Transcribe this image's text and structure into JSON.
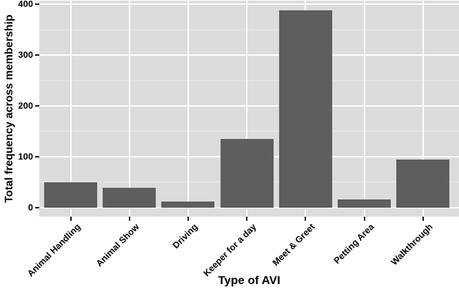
{
  "chart_data": {
    "type": "bar",
    "title": "",
    "categories": [
      "Animal Handling",
      "Animal Show",
      "Driving",
      "Keeper for a day",
      "Meet & Greet",
      "Petting Area",
      "Walkthrough"
    ],
    "values": [
      50,
      39,
      12,
      135,
      388,
      16,
      95
    ],
    "xlabel": "Type of AVI",
    "ylabel": "Total frequency across membership",
    "ylim": [
      0,
      400
    ],
    "yticks": [
      0,
      100,
      200,
      300,
      400
    ],
    "minor_gridline_interval": 50,
    "grid": "horizontal major + minor; vertical major at category centers",
    "legend": "none",
    "style": "ggplot2 grey theme",
    "colors": {
      "bar_fill": "#5E5E5E",
      "panel_background": "#DCDCDC",
      "grid_major": "#FFFFFF",
      "grid_minor": "#EAEAEA",
      "axis_text": "#000000",
      "tick_marks": "#111111",
      "figure_background": "#FFFFFF"
    }
  }
}
